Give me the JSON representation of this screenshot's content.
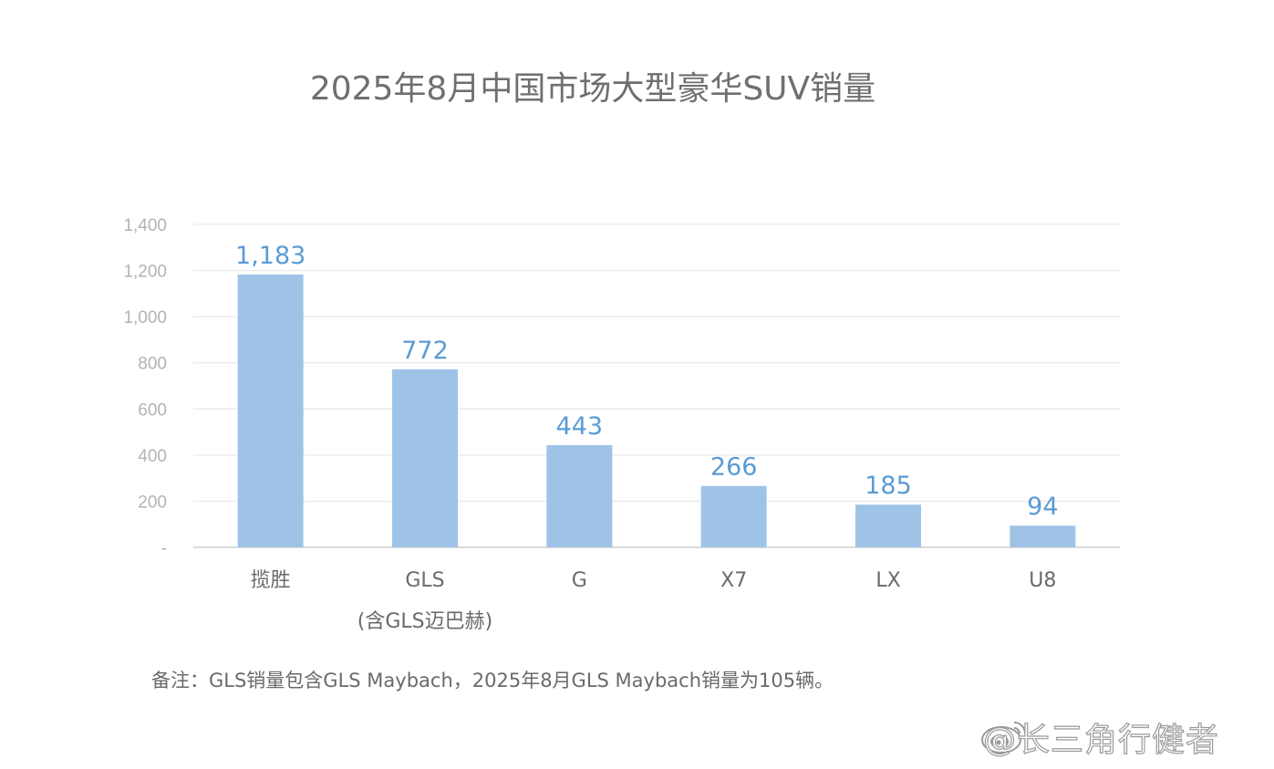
{
  "chart_data": {
    "type": "bar",
    "title": "2025年8月中国市场大型豪华SUV销量",
    "categories": [
      "揽胜",
      "GLS",
      "G",
      "X7",
      "LX",
      "U8"
    ],
    "category_sublabels": [
      "",
      "(含GLS迈巴赫)",
      "",
      "",
      "",
      ""
    ],
    "values": [
      1183,
      772,
      443,
      266,
      185,
      94
    ],
    "data_labels": [
      "1,183",
      "772",
      "443",
      "266",
      "185",
      "94"
    ],
    "ylim": [
      0,
      1400
    ],
    "yticks": [
      0,
      200,
      400,
      600,
      800,
      1000,
      1200,
      1400
    ],
    "ytick_labels": [
      "-",
      "200",
      "400",
      "600",
      "800",
      "1,000",
      "1,200",
      "1,400"
    ],
    "xlabel": "",
    "ylabel": "",
    "grid": true,
    "bar_color": "#9fc3e7",
    "label_color": "#5b9bd5"
  },
  "footnote": "备注：GLS销量包含GLS Maybach，2025年8月GLS Maybach销量为105辆。",
  "watermark": "@长三角行健者"
}
